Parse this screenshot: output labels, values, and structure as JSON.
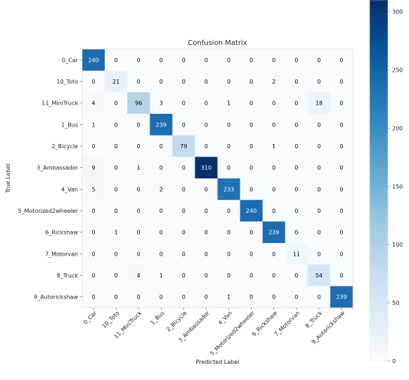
{
  "chart_data": {
    "type": "heatmap",
    "title": "Confusion Matrix",
    "xlabel": "Predicted Label",
    "ylabel": "True Label",
    "labels": [
      "0_Car",
      "10_Toto",
      "11_MiniTruck",
      "1_Bus",
      "2_Bicycle",
      "3_Ambassador",
      "4_Van",
      "5_Motorized2wheeler",
      "6_Rickshaw",
      "7_Motorvan",
      "8_Truck",
      "9_Autorickshaw"
    ],
    "matrix": [
      [
        240,
        0,
        0,
        0,
        0,
        0,
        0,
        0,
        0,
        0,
        0,
        0
      ],
      [
        0,
        21,
        0,
        0,
        0,
        0,
        0,
        0,
        2,
        0,
        0,
        0
      ],
      [
        4,
        0,
        96,
        3,
        0,
        0,
        1,
        0,
        0,
        0,
        18,
        0
      ],
      [
        1,
        0,
        0,
        239,
        0,
        0,
        0,
        0,
        0,
        0,
        0,
        0
      ],
      [
        0,
        0,
        0,
        0,
        79,
        0,
        0,
        0,
        1,
        0,
        0,
        0
      ],
      [
        9,
        0,
        1,
        0,
        0,
        310,
        0,
        0,
        0,
        0,
        0,
        0
      ],
      [
        5,
        0,
        0,
        2,
        0,
        0,
        233,
        0,
        0,
        0,
        0,
        0
      ],
      [
        0,
        0,
        0,
        0,
        0,
        0,
        0,
        240,
        0,
        0,
        0,
        0
      ],
      [
        0,
        1,
        0,
        0,
        0,
        0,
        0,
        0,
        239,
        0,
        0,
        0
      ],
      [
        0,
        0,
        0,
        0,
        0,
        0,
        0,
        0,
        0,
        11,
        0,
        0
      ],
      [
        0,
        0,
        4,
        1,
        0,
        0,
        0,
        0,
        0,
        0,
        54,
        0
      ],
      [
        0,
        0,
        0,
        0,
        0,
        0,
        1,
        0,
        0,
        0,
        0,
        239
      ]
    ],
    "color_range": [
      0,
      310
    ],
    "colormap": "Blues",
    "colorbar_ticks": [
      0,
      50,
      100,
      150,
      200,
      250,
      300
    ],
    "colors": {
      "low": "#f7fbff",
      "high": "#08306b",
      "light_text": "#ffffff",
      "dark_text": "#000000"
    }
  }
}
